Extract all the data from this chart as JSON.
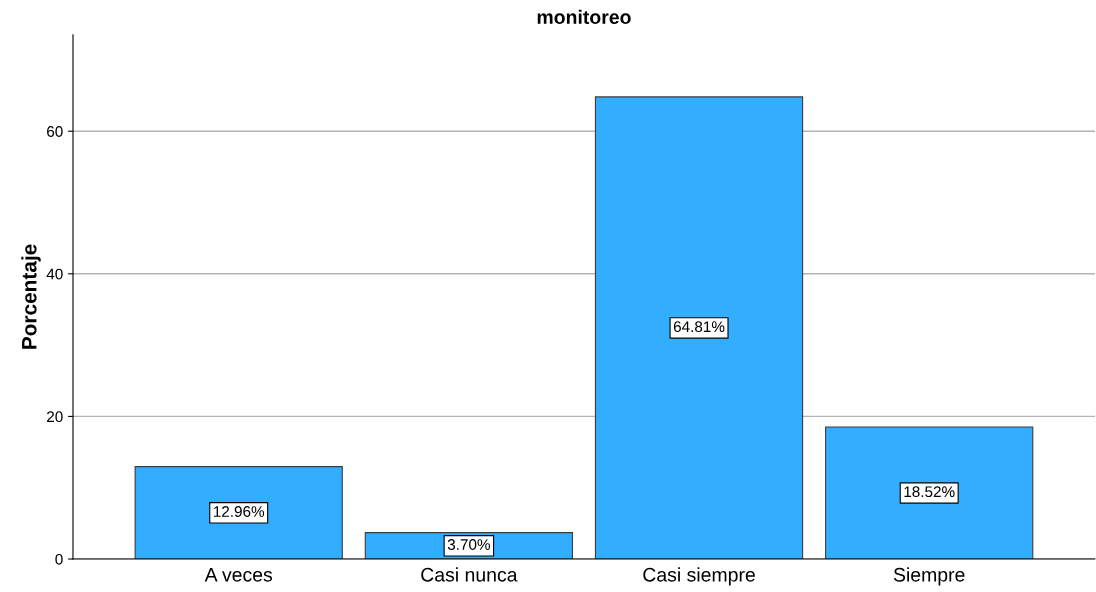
{
  "chart_data": {
    "type": "bar",
    "title": "monitoreo",
    "ylabel": "Porcentaje",
    "categories": [
      "A veces",
      "Casi nunca",
      "Casi siempre",
      "Siempre"
    ],
    "values": [
      12.96,
      3.7,
      64.81,
      18.52
    ],
    "value_labels": [
      "12.96%",
      "3.70%",
      "64.81%",
      "18.52%"
    ],
    "color": "#33adff",
    "ylim": [
      0,
      73.5
    ],
    "yticks": [
      0,
      20,
      40,
      60
    ],
    "grid": "y",
    "legend": false
  }
}
